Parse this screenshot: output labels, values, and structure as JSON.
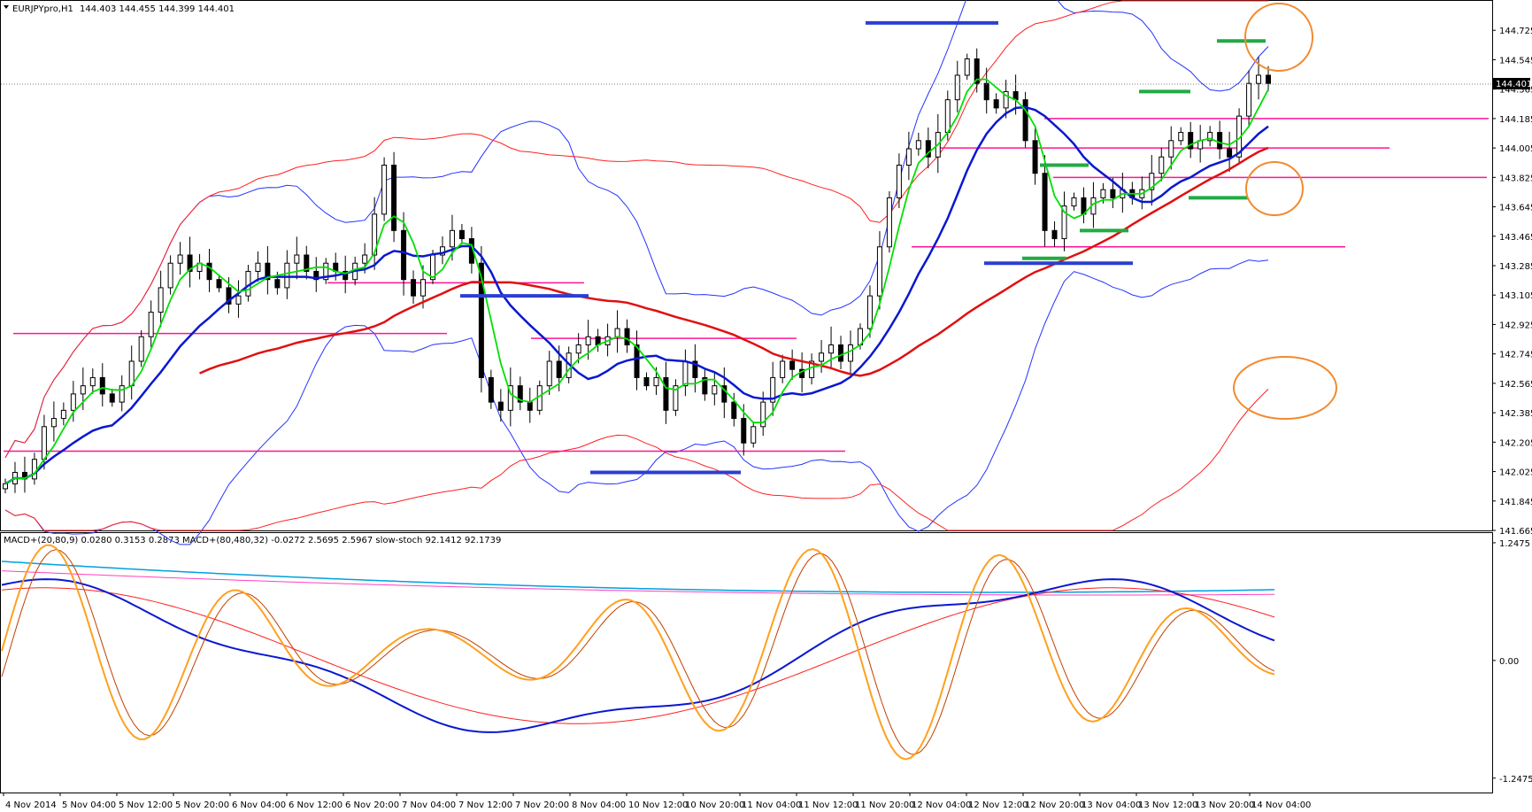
{
  "window": {
    "title": "EURJPYpro,H1",
    "ohlc": "144.403 144.455 144.399 144.401",
    "current_price": "144.401"
  },
  "subwindow": {
    "title": "MACD+(20,80,9) 0.0280 0.3153 0.2873  MACD+(80,480,32) -0.0272 2.5695 2.5967  slow-stoch 92.1412 92.1739"
  },
  "colors": {
    "background": "#ffffff",
    "candle_bull": "#ffffff",
    "candle_bear": "#000000",
    "bollinger_short": "#2433ff",
    "bollinger_long": "#ff2020",
    "ma_fast": "#00e000",
    "ma_mid": "#0a18d0",
    "ma_slow": "#e01010",
    "levels": "#ff1493",
    "blue_marks": "#2b3fd1",
    "green_marks": "#22aa44",
    "ellipses": "#f28a30",
    "macd_main": "#0a18d0",
    "macd_signal": "#ff2020",
    "stoch_main": "#ffa020",
    "stoch_signal": "#c04000",
    "macd_long": "#00a0e0",
    "macd_long_signal": "#ff40c0"
  },
  "chart_data": [
    {
      "type": "candlestick",
      "title": "EURJPYpro,H1",
      "y_ticks": [
        "144.725",
        "144.545",
        "144.365",
        "144.185",
        "144.005",
        "143.825",
        "143.645",
        "143.465",
        "143.285",
        "143.105",
        "142.925",
        "142.745",
        "142.565",
        "142.385",
        "142.205",
        "142.025",
        "141.845",
        "141.665"
      ],
      "ylim": [
        141.665,
        144.905
      ],
      "x_labels": [
        "4 Nov 2014",
        "5 Nov 04:00",
        "5 Nov 12:00",
        "5 Nov 20:00",
        "6 Nov 04:00",
        "6 Nov 12:00",
        "6 Nov 20:00",
        "7 Nov 04:00",
        "7 Nov 12:00",
        "7 Nov 20:00",
        "8 Nov 04:00",
        "10 Nov 12:00",
        "10 Nov 20:00",
        "11 Nov 04:00",
        "11 Nov 12:00",
        "11 Nov 20:00",
        "12 Nov 04:00",
        "12 Nov 12:00",
        "12 Nov 20:00",
        "13 Nov 04:00",
        "13 Nov 12:00",
        "13 Nov 20:00",
        "14 Nov 04:00"
      ],
      "close_series": [
        141.95,
        142.02,
        141.98,
        142.1,
        142.3,
        142.35,
        142.4,
        142.5,
        142.55,
        142.6,
        142.5,
        142.45,
        142.55,
        142.7,
        142.85,
        143.0,
        143.15,
        143.3,
        143.35,
        143.25,
        143.3,
        143.2,
        143.15,
        143.05,
        143.1,
        143.25,
        143.3,
        143.2,
        143.15,
        143.3,
        143.35,
        143.25,
        143.2,
        143.3,
        143.25,
        143.2,
        143.3,
        143.35,
        143.6,
        143.9,
        143.5,
        143.2,
        143.1,
        143.2,
        143.35,
        143.4,
        143.5,
        143.45,
        143.3,
        142.6,
        142.45,
        142.4,
        142.55,
        142.45,
        142.4,
        142.55,
        142.7,
        142.6,
        142.75,
        142.8,
        142.85,
        142.8,
        142.85,
        142.9,
        142.8,
        142.6,
        142.55,
        142.6,
        142.4,
        142.55,
        142.7,
        142.6,
        142.5,
        142.55,
        142.45,
        142.35,
        142.2,
        142.3,
        142.45,
        142.6,
        142.7,
        142.65,
        142.6,
        142.7,
        142.75,
        142.8,
        142.7,
        142.8,
        142.9,
        143.1,
        143.4,
        143.7,
        143.9,
        144.0,
        144.05,
        143.95,
        144.1,
        144.3,
        144.45,
        144.55,
        144.4,
        144.3,
        144.25,
        144.35,
        144.3,
        144.05,
        143.85,
        143.5,
        143.45,
        143.65,
        143.7,
        143.6,
        143.7,
        143.75,
        143.7,
        143.75,
        143.7,
        143.75,
        143.85,
        143.95,
        144.05,
        144.1,
        144.0,
        144.05,
        144.1,
        144.0,
        143.95,
        144.2,
        144.4,
        144.45,
        144.4
      ],
      "horizontal_levels": [
        144.185,
        144.005,
        143.825,
        143.4,
        143.18,
        142.87,
        142.84,
        142.15
      ],
      "blue_marks": [
        144.77,
        143.1,
        142.02,
        143.3
      ],
      "green_marks": [
        144.66,
        144.35,
        143.9,
        143.7,
        143.5,
        143.33
      ]
    },
    {
      "type": "line",
      "title": "MACD+(20,80,9) 0.0280 0.3153 0.2873  MACD+(80,480,32) -0.0272 2.5695 2.5967  slow-stoch 92.1412 92.1739",
      "y_ticks": [
        "1.2475",
        "0.00",
        "-1.2475"
      ],
      "ylim": [
        -1.4,
        1.35
      ]
    }
  ]
}
